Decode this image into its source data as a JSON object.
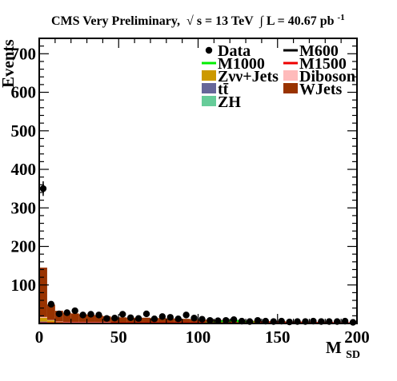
{
  "chart_data": {
    "type": "bar",
    "title": {
      "prefix": "CMS Very Preliminary,",
      "sqrt_symbol": "√",
      "energy": "s = 13 TeV",
      "lumi_symbol": "∫",
      "lumi": "L = 40.67 pb",
      "lumi_exp": "-1"
    },
    "xlabel": {
      "main": "M",
      "sub": "SD"
    },
    "ylabel": "Events",
    "xlim": [
      0,
      200
    ],
    "ylim": [
      0,
      740
    ],
    "x_ticks": [
      0,
      50,
      100,
      150,
      200
    ],
    "y_ticks": [
      100,
      200,
      300,
      400,
      500,
      600,
      700
    ],
    "grid": false,
    "legend_position": "top-right",
    "bin_width": 5,
    "bin_edges_start": [
      0,
      5,
      10,
      15,
      20,
      25,
      30,
      35,
      40,
      45,
      50,
      55,
      60,
      65,
      70,
      75,
      80,
      85,
      90,
      95,
      100,
      105,
      110,
      115,
      120,
      125,
      130,
      135,
      140,
      145,
      150,
      155,
      160,
      165,
      170,
      175,
      180,
      185,
      190,
      195
    ],
    "stack": [
      {
        "name": "ZH",
        "color": "#66cc99",
        "values": [
          2,
          1,
          1,
          1,
          1,
          1,
          1,
          1,
          1,
          0,
          0,
          0,
          0,
          0,
          0,
          0,
          0,
          0,
          0,
          0,
          0,
          0,
          0,
          0,
          0,
          0,
          0,
          0,
          0,
          0,
          0,
          0,
          0,
          0,
          0,
          0,
          0,
          0,
          0,
          0
        ]
      },
      {
        "name": "tt̄",
        "color": "#666699",
        "values": [
          3,
          1,
          1,
          1,
          1,
          1,
          1,
          1,
          1,
          1,
          1,
          1,
          1,
          1,
          1,
          1,
          1,
          1,
          1,
          0,
          0,
          0,
          0,
          0,
          0,
          0,
          0,
          0,
          0,
          0,
          0,
          0,
          0,
          0,
          0,
          0,
          0,
          0,
          0,
          0
        ]
      },
      {
        "name": "Zνν+Jets",
        "color": "#cc9900",
        "values": [
          10,
          6,
          2,
          1,
          1,
          1,
          1,
          1,
          1,
          1,
          1,
          1,
          1,
          1,
          1,
          1,
          1,
          1,
          1,
          1,
          0,
          0,
          0,
          0,
          0,
          0,
          0,
          0,
          0,
          0,
          0,
          0,
          0,
          0,
          0,
          0,
          0,
          0,
          0,
          0
        ]
      },
      {
        "name": "Diboson",
        "color": "#ffbbbb",
        "values": [
          2,
          1,
          1,
          1,
          1,
          1,
          1,
          1,
          1,
          0,
          0,
          0,
          0,
          0,
          0,
          0,
          0,
          0,
          0,
          0,
          0,
          0,
          0,
          0,
          0,
          0,
          0,
          0,
          0,
          0,
          0,
          0,
          0,
          0,
          0,
          0,
          0,
          0,
          0,
          0
        ]
      },
      {
        "name": "WJets",
        "color": "#993300",
        "values": [
          128,
          40,
          28,
          24,
          22,
          20,
          19,
          17,
          15,
          14,
          14,
          13,
          13,
          13,
          12,
          12,
          11,
          11,
          10,
          10,
          10,
          10,
          9,
          9,
          8,
          8,
          7,
          7,
          6,
          6,
          6,
          5,
          5,
          5,
          4,
          4,
          4,
          3,
          3,
          3
        ]
      }
    ],
    "signals": [
      {
        "name": "M600",
        "color": "#000000",
        "values": [
          0,
          0,
          0,
          0,
          0,
          0,
          0,
          0,
          0,
          0,
          0,
          0,
          0,
          0,
          0,
          0,
          0,
          0,
          0,
          0,
          0,
          0,
          0,
          0,
          0,
          0,
          0,
          0,
          0,
          0,
          0,
          0,
          0,
          0,
          0,
          0,
          0,
          0,
          0,
          0
        ]
      },
      {
        "name": "M1000",
        "color": "#00ee00",
        "values": [
          0,
          0,
          0,
          0,
          0,
          0,
          0,
          0,
          0,
          0,
          0,
          0,
          0,
          0,
          0,
          0,
          0,
          0,
          0,
          0,
          1,
          2,
          4,
          6,
          7,
          5,
          3,
          1,
          0,
          0,
          0,
          0,
          0,
          0,
          0,
          0,
          0,
          0,
          0,
          0
        ]
      },
      {
        "name": "M1500",
        "color": "#ee0000",
        "values": [
          1,
          1,
          1,
          1,
          1,
          1,
          1,
          1,
          1,
          1,
          1,
          1,
          1,
          1,
          1,
          1,
          1,
          1,
          1,
          1,
          1,
          1,
          1,
          1,
          1,
          1,
          1,
          1,
          1,
          1,
          1,
          1,
          1,
          1,
          1,
          1,
          1,
          1,
          1,
          1
        ]
      }
    ],
    "data": {
      "name": "Data",
      "x": [
        2.5,
        7.5,
        12.5,
        17.5,
        22.5,
        27.5,
        32.5,
        37.5,
        42.5,
        47.5,
        52.5,
        57.5,
        62.5,
        67.5,
        72.5,
        77.5,
        82.5,
        87.5,
        92.5,
        97.5,
        102.5,
        107.5,
        112.5,
        117.5,
        122.5,
        127.5,
        132.5,
        137.5,
        142.5,
        147.5,
        152.5,
        157.5,
        162.5,
        167.5,
        172.5,
        177.5,
        182.5,
        187.5,
        192.5,
        197.5
      ],
      "y": [
        350,
        50,
        25,
        28,
        33,
        22,
        24,
        22,
        13,
        14,
        24,
        15,
        13,
        25,
        12,
        18,
        16,
        12,
        22,
        14,
        11,
        8,
        7,
        8,
        10,
        6,
        5,
        8,
        6,
        5,
        6,
        4,
        5,
        5,
        6,
        5,
        5,
        5,
        6,
        3
      ],
      "y_err_shown": [
        0,
        0,
        0,
        0,
        0,
        0,
        0,
        0,
        0,
        0,
        0,
        0,
        0,
        0,
        0,
        0,
        0,
        0,
        0,
        0,
        0,
        0,
        0,
        0,
        0,
        0,
        0,
        0,
        0,
        0,
        0,
        0,
        0,
        0,
        0,
        0,
        0,
        0,
        0,
        0
      ],
      "y_err_first": 19
    },
    "legend": [
      {
        "label": "Data",
        "style": "marker",
        "color": "#000000"
      },
      {
        "label": "M600",
        "style": "line",
        "color": "#000000"
      },
      {
        "label": "M1000",
        "style": "line",
        "color": "#00ee00"
      },
      {
        "label": "M1500",
        "style": "line",
        "color": "#ee0000"
      },
      {
        "label": "Zνν+Jets",
        "style": "box",
        "color": "#cc9900"
      },
      {
        "label": "Diboson",
        "style": "box",
        "color": "#ffbbbb"
      },
      {
        "label": "tt̄",
        "style": "box",
        "color": "#666699"
      },
      {
        "label": "WJets",
        "style": "box",
        "color": "#993300"
      },
      {
        "label": "ZH",
        "style": "box",
        "color": "#66cc99"
      }
    ]
  }
}
